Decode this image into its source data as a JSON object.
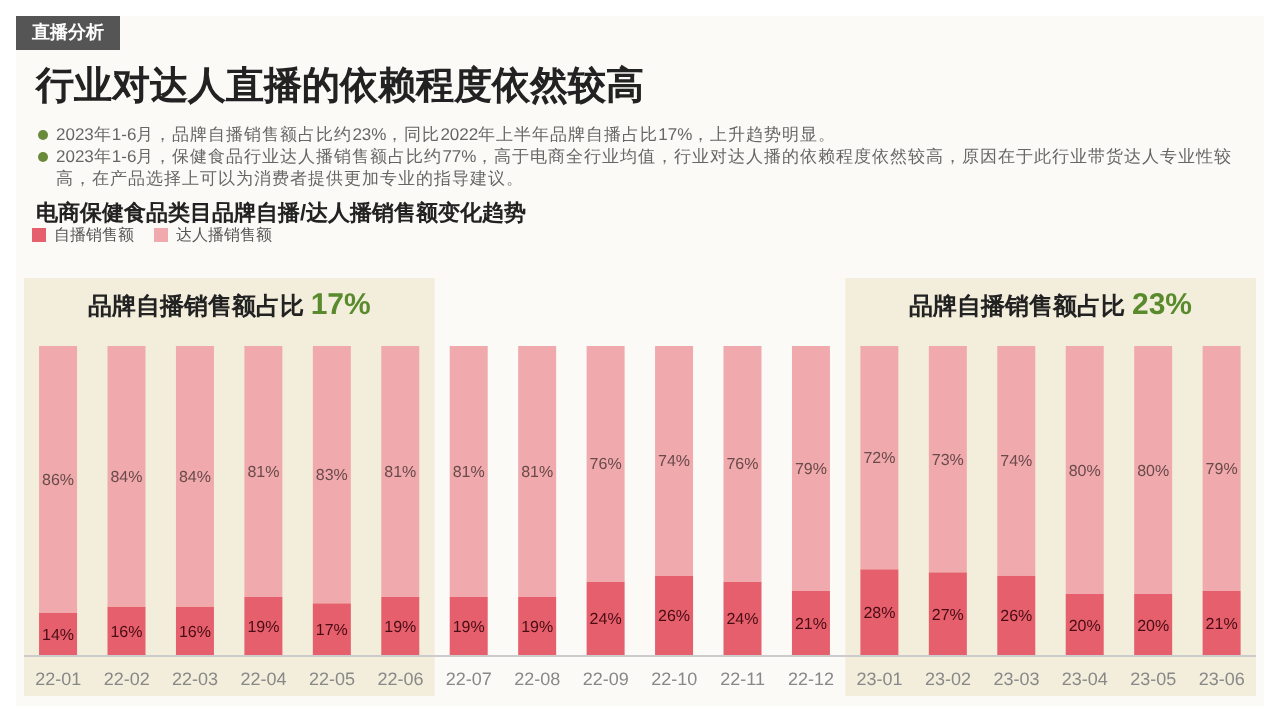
{
  "chart_data": {
    "type": "bar",
    "stacked": true,
    "title": "行业对达人直播的依赖程度依然较高",
    "subtitle": "电商保健食品类目品牌自播/达人播销售额变化趋势",
    "annotations": [
      "直播分析",
      "2023年1-6月，品牌自播销售额占比约23%，同比2022年上半年品牌自播占比17%，上升趋势明显。",
      "2023年1-6月，保健食品行业达人播销售额占比约77%，高于电商全行业均值，行业对达人播的依赖程度依然较高，原因在于此行业带货达人专业性较高，在产品选择上可以为消费者提供更加专业的指导建议。"
    ],
    "categories": [
      "22-01",
      "22-02",
      "22-03",
      "22-04",
      "22-05",
      "22-06",
      "22-07",
      "22-08",
      "22-09",
      "22-10",
      "22-11",
      "22-12",
      "23-01",
      "23-02",
      "23-03",
      "23-04",
      "23-05",
      "23-06"
    ],
    "series": [
      {
        "name": "自播销售额",
        "color": "#e5606c",
        "values": [
          14,
          16,
          16,
          19,
          17,
          19,
          19,
          19,
          24,
          26,
          24,
          21,
          28,
          27,
          26,
          20,
          20,
          21
        ],
        "value_labels": [
          "14%",
          "16%",
          "16%",
          "19%",
          "17%",
          "19%",
          "19%",
          "19%",
          "24%",
          "26%",
          "24%",
          "21%",
          "28%",
          "27%",
          "26%",
          "20%",
          "20%",
          "21%"
        ]
      },
      {
        "name": "达人播销售额",
        "color": "#f0aaad",
        "values": [
          86,
          84,
          84,
          81,
          83,
          81,
          81,
          81,
          76,
          74,
          76,
          79,
          72,
          73,
          74,
          80,
          80,
          79
        ],
        "value_labels": [
          "86%",
          "84%",
          "84%",
          "81%",
          "83%",
          "81%",
          "81%",
          "81%",
          "76%",
          "74%",
          "76%",
          "79%",
          "72%",
          "73%",
          "74%",
          "80%",
          "80%",
          "79%"
        ]
      }
    ],
    "bands": [
      {
        "axis": "x",
        "from": "22-01",
        "to": "22-06",
        "label": "品牌自播销售额占比 17%",
        "color": "#f3eedb"
      },
      {
        "axis": "x",
        "from": "23-01",
        "to": "23-06",
        "label": "品牌自播销售额占比 23%",
        "color": "#f3eedb"
      }
    ],
    "legend": "top left"
  }
}
